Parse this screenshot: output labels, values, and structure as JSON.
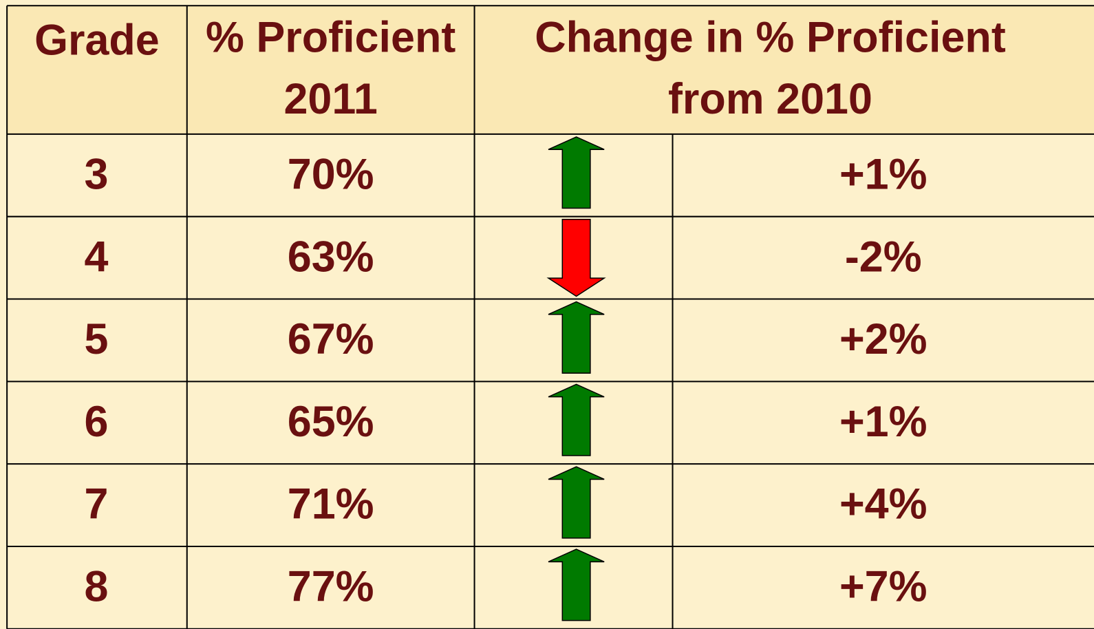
{
  "table": {
    "header": [
      [
        "Grade"
      ],
      [
        "% Proficient",
        "2011"
      ],
      [
        "Change in % Proficient",
        "from 2010"
      ]
    ],
    "rows": [
      {
        "grade": "3",
        "proficient": "70%",
        "change": "+1%"
      },
      {
        "grade": "4",
        "proficient": "63%",
        "change": "-2%"
      },
      {
        "grade": "5",
        "proficient": "67%",
        "change": "+2%"
      },
      {
        "grade": "6",
        "proficient": "65%",
        "change": "+1%"
      },
      {
        "grade": "7",
        "proficient": "71%",
        "change": "+4%"
      },
      {
        "grade": "8",
        "proficient": "77%",
        "change": "+7%"
      }
    ]
  }
}
